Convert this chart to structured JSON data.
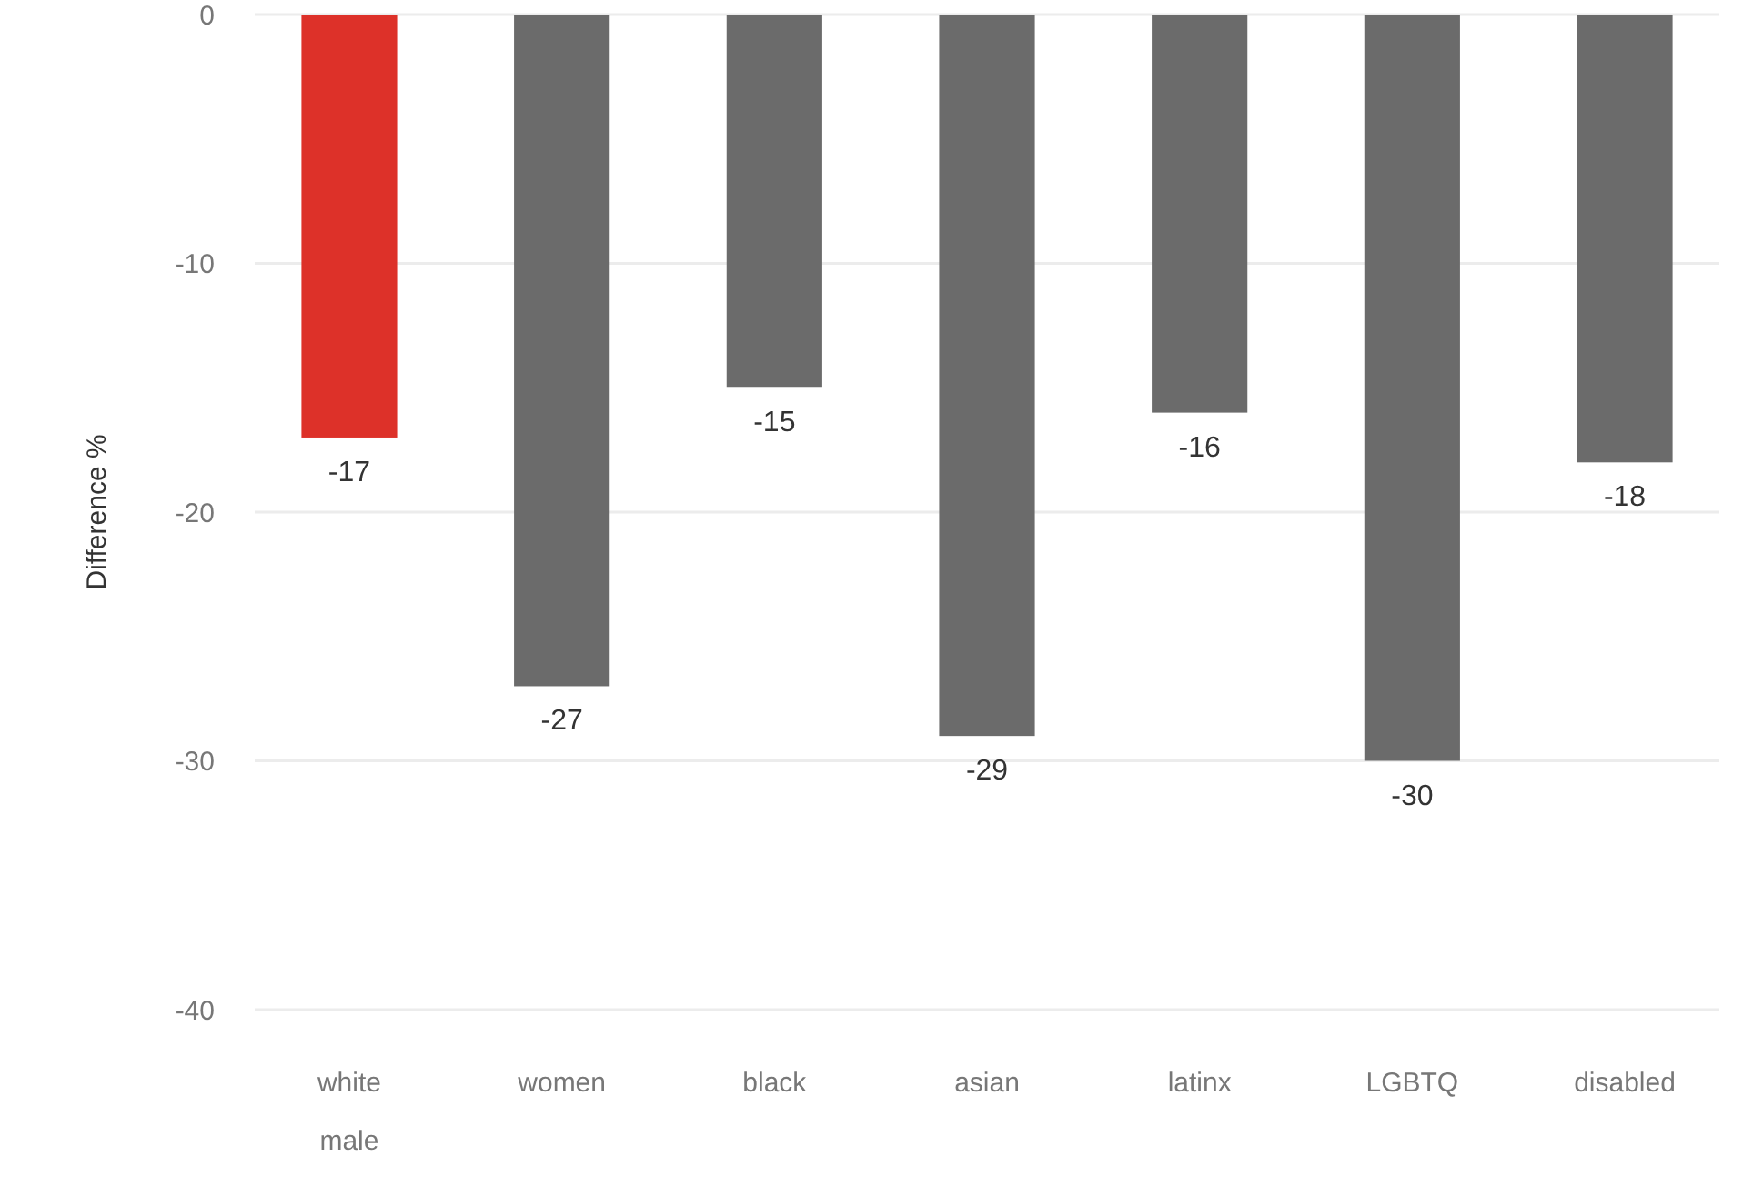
{
  "chart_data": {
    "type": "bar",
    "categories": [
      "white male",
      "women",
      "black",
      "asian",
      "latinx",
      "LGBTQ",
      "disabled"
    ],
    "values": [
      -17,
      -27,
      -15,
      -29,
      -16,
      -30,
      -18
    ],
    "colors": [
      "#dd3129",
      "#6b6b6b",
      "#6b6b6b",
      "#6b6b6b",
      "#6b6b6b",
      "#6b6b6b",
      "#6b6b6b"
    ],
    "ylabel": "Difference %",
    "ylim": [
      -40,
      0
    ],
    "yticks": [
      0,
      -10,
      -20,
      -30,
      -40
    ],
    "grid": "y",
    "data_labels": true
  }
}
